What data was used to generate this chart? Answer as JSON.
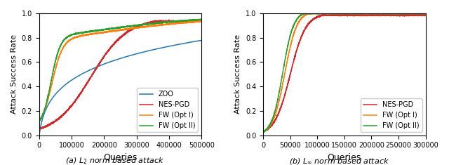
{
  "left": {
    "title": "(a) $L_2$ norm based attack",
    "xlabel": "Queries",
    "ylabel": "Attack Success Rate",
    "xlim": [
      0,
      500000
    ],
    "ylim": [
      0,
      1.0
    ],
    "xticks": [
      0,
      100000,
      200000,
      300000,
      400000,
      500000
    ],
    "yticks": [
      0.0,
      0.2,
      0.4,
      0.6,
      0.8,
      1.0
    ],
    "legend_loc": "lower right",
    "series": {
      "ZOO": {
        "color": "#1f77b4"
      },
      "NES-PGD": {
        "color": "#d62728"
      },
      "FW (Opt I)": {
        "color": "#ff7f0e"
      },
      "FW (Opt II)": {
        "color": "#2ca02c"
      }
    }
  },
  "right": {
    "title": "(b) $L_\\infty$ norm based attack",
    "xlabel": "Queries",
    "ylabel": "Attack Success Rate",
    "xlim": [
      0,
      300000
    ],
    "ylim": [
      0,
      1.0
    ],
    "xticks": [
      0,
      50000,
      100000,
      150000,
      200000,
      250000,
      300000
    ],
    "yticks": [
      0.0,
      0.2,
      0.4,
      0.6,
      0.8,
      1.0
    ],
    "legend_loc": "lower right",
    "series": {
      "NES-PGD": {
        "color": "#d62728"
      },
      "FW (Opt I)": {
        "color": "#ff7f0e"
      },
      "FW (Opt II)": {
        "color": "#2ca02c"
      }
    }
  },
  "figsize": [
    6.4,
    2.35
  ],
  "dpi": 100
}
